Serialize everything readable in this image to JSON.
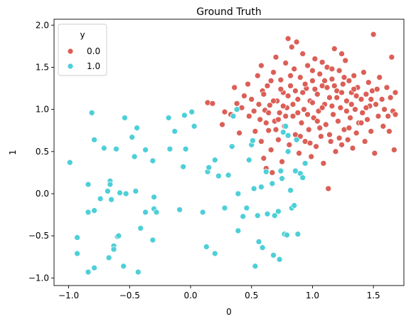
{
  "chart_data": {
    "type": "scatter",
    "title": "Ground Truth",
    "xlabel": "0",
    "ylabel": "1",
    "xlim": [
      -1.12,
      1.75
    ],
    "ylim": [
      -1.09,
      2.07
    ],
    "xticks": [
      -1.0,
      -0.5,
      0.0,
      0.5,
      1.0,
      1.5
    ],
    "xtick_labels": [
      "−1.0",
      "−0.5",
      "0.0",
      "0.5",
      "1.0",
      "1.5"
    ],
    "yticks": [
      -1.0,
      -0.5,
      0.0,
      0.5,
      1.0,
      1.5,
      2.0
    ],
    "ytick_labels": [
      "−1.0",
      "−0.5",
      "0.0",
      "0.5",
      "1.0",
      "1.5",
      "2.0"
    ],
    "grid": false,
    "legend": {
      "title": "y",
      "placement": "top-left"
    },
    "series": [
      {
        "name": "0.0",
        "color": "#db5f57",
        "points": [
          [
            0.14,
            1.08
          ],
          [
            0.18,
            1.07
          ],
          [
            0.26,
            0.82
          ],
          [
            0.28,
            0.97
          ],
          [
            0.33,
            0.94
          ],
          [
            0.36,
            1.26
          ],
          [
            0.38,
            1.07
          ],
          [
            0.4,
            0.72
          ],
          [
            0.42,
            1.02
          ],
          [
            0.44,
            1.16
          ],
          [
            0.47,
            1.3
          ],
          [
            0.48,
            0.92
          ],
          [
            0.5,
            1.12
          ],
          [
            0.52,
            0.98
          ],
          [
            0.53,
            0.74
          ],
          [
            0.55,
            1.4
          ],
          [
            0.57,
            0.88
          ],
          [
            0.58,
            1.52
          ],
          [
            0.59,
            1.22
          ],
          [
            0.6,
            0.42
          ],
          [
            0.61,
            0.99
          ],
          [
            0.62,
            0.3
          ],
          [
            0.63,
            1.28
          ],
          [
            0.64,
            0.75
          ],
          [
            0.65,
            1.05
          ],
          [
            0.66,
            0.52
          ],
          [
            0.67,
            0.25
          ],
          [
            0.68,
            1.44
          ],
          [
            0.69,
            0.86
          ],
          [
            0.7,
            1.62
          ],
          [
            0.71,
            1.1
          ],
          [
            0.72,
            0.64
          ],
          [
            0.73,
            0.96
          ],
          [
            0.74,
            1.35
          ],
          [
            0.75,
            0.38
          ],
          [
            0.76,
            1.2
          ],
          [
            0.77,
            0.8
          ],
          [
            0.78,
            1.55
          ],
          [
            0.79,
            1.02
          ],
          [
            0.8,
            1.84
          ],
          [
            0.81,
            0.58
          ],
          [
            0.82,
            1.28
          ],
          [
            0.83,
            1.74
          ],
          [
            0.84,
            0.92
          ],
          [
            0.85,
            1.48
          ],
          [
            0.86,
            0.7
          ],
          [
            0.87,
            1.8
          ],
          [
            0.88,
            1.12
          ],
          [
            0.89,
            0.48
          ],
          [
            0.9,
            1.38
          ],
          [
            0.91,
            0.84
          ],
          [
            0.92,
            1.66
          ],
          [
            0.93,
            1.0
          ],
          [
            0.94,
            0.62
          ],
          [
            0.95,
            1.25
          ],
          [
            0.96,
            1.52
          ],
          [
            0.97,
            0.76
          ],
          [
            0.98,
            1.1
          ],
          [
            0.99,
            0.44
          ],
          [
            1.0,
            1.34
          ],
          [
            1.01,
            0.9
          ],
          [
            1.02,
            1.6
          ],
          [
            1.03,
            0.56
          ],
          [
            1.04,
            1.18
          ],
          [
            1.05,
            0.98
          ],
          [
            1.06,
            1.42
          ],
          [
            1.07,
            0.68
          ],
          [
            1.08,
            1.28
          ],
          [
            1.09,
            0.36
          ],
          [
            1.1,
            1.06
          ],
          [
            1.11,
            0.82
          ],
          [
            1.12,
            1.5
          ],
          [
            1.13,
            0.06
          ],
          [
            1.14,
            1.14
          ],
          [
            1.15,
            0.62
          ],
          [
            1.16,
            1.36
          ],
          [
            1.17,
            0.94
          ],
          [
            1.18,
            1.72
          ],
          [
            1.19,
            0.5
          ],
          [
            1.2,
            1.22
          ],
          [
            1.21,
            0.86
          ],
          [
            1.22,
            1.46
          ],
          [
            1.23,
            1.02
          ],
          [
            1.24,
            0.58
          ],
          [
            1.25,
            1.3
          ],
          [
            1.26,
            0.76
          ],
          [
            1.27,
            1.58
          ],
          [
            1.28,
            1.1
          ],
          [
            1.29,
            0.64
          ],
          [
            1.3,
            1.34
          ],
          [
            1.31,
            0.9
          ],
          [
            1.32,
            1.2
          ],
          [
            1.33,
            0.54
          ],
          [
            1.34,
            1.4
          ],
          [
            1.35,
            1.0
          ],
          [
            1.36,
            0.72
          ],
          [
            1.37,
            1.26
          ],
          [
            1.38,
            0.84
          ],
          [
            1.4,
            1.12
          ],
          [
            1.41,
            0.96
          ],
          [
            1.42,
            1.44
          ],
          [
            1.43,
            0.62
          ],
          [
            1.44,
            1.18
          ],
          [
            1.45,
            0.88
          ],
          [
            1.46,
            1.32
          ],
          [
            1.47,
            1.04
          ],
          [
            1.48,
            0.74
          ],
          [
            1.49,
            1.22
          ],
          [
            1.5,
            1.89
          ],
          [
            1.51,
            0.48
          ],
          [
            1.52,
            1.06
          ],
          [
            1.53,
            1.24
          ],
          [
            1.54,
            0.92
          ],
          [
            1.55,
            1.38
          ],
          [
            1.57,
            1.12
          ],
          [
            1.58,
            0.8
          ],
          [
            1.59,
            1.0
          ],
          [
            1.61,
            1.26
          ],
          [
            1.62,
            0.92
          ],
          [
            1.63,
            0.74
          ],
          [
            1.64,
            1.14
          ],
          [
            1.65,
            1.62
          ],
          [
            1.66,
            0.98
          ],
          [
            1.67,
            0.52
          ],
          [
            1.68,
            1.2
          ],
          [
            1.68,
            0.94
          ],
          [
            0.56,
            1.06
          ],
          [
            0.6,
            1.18
          ],
          [
            0.64,
            0.96
          ],
          [
            0.68,
            1.1
          ],
          [
            0.72,
            0.88
          ],
          [
            0.76,
            1.04
          ],
          [
            0.8,
            1.16
          ],
          [
            0.84,
            1.06
          ],
          [
            0.88,
            0.96
          ],
          [
            0.92,
            1.2
          ],
          [
            0.96,
            0.94
          ],
          [
            1.0,
            1.08
          ],
          [
            1.04,
            0.86
          ],
          [
            1.08,
            1.02
          ],
          [
            1.12,
            1.26
          ],
          [
            1.16,
            1.04
          ],
          [
            1.2,
            1.14
          ],
          [
            1.24,
            1.2
          ],
          [
            1.28,
            0.98
          ],
          [
            1.32,
            1.06
          ],
          [
            1.36,
            1.16
          ],
          [
            1.4,
            0.84
          ],
          [
            1.44,
            1.02
          ],
          [
            1.48,
            1.12
          ],
          [
            0.62,
            0.84
          ],
          [
            0.7,
            0.76
          ],
          [
            0.78,
            0.92
          ],
          [
            0.86,
            1.22
          ],
          [
            0.94,
            1.3
          ],
          [
            1.02,
            1.24
          ],
          [
            1.1,
            1.34
          ],
          [
            1.18,
            1.28
          ],
          [
            1.26,
            1.38
          ],
          [
            1.34,
            1.24
          ],
          [
            0.9,
            0.68
          ],
          [
            0.98,
            0.6
          ],
          [
            1.06,
            0.78
          ],
          [
            1.14,
            0.7
          ],
          [
            1.22,
            0.66
          ],
          [
            1.3,
            0.78
          ],
          [
            0.74,
            1.24
          ],
          [
            0.82,
            1.4
          ],
          [
            1.0,
            1.46
          ],
          [
            1.08,
            1.56
          ],
          [
            1.16,
            1.48
          ],
          [
            1.24,
            1.66
          ],
          [
            0.66,
            1.34
          ],
          [
            0.58,
            0.62
          ]
        ]
      },
      {
        "name": "1.0",
        "color": "#4ecfd8",
        "points": [
          [
            -0.99,
            0.37
          ],
          [
            -0.93,
            -0.52
          ],
          [
            -0.93,
            -0.71
          ],
          [
            -0.84,
            -0.22
          ],
          [
            -0.84,
            0.11
          ],
          [
            -0.84,
            -0.93
          ],
          [
            -0.81,
            0.96
          ],
          [
            -0.79,
            0.64
          ],
          [
            -0.79,
            -0.2
          ],
          [
            -0.79,
            -0.88
          ],
          [
            -0.74,
            -0.06
          ],
          [
            -0.71,
            0.54
          ],
          [
            -0.68,
            0.03
          ],
          [
            -0.67,
            -0.76
          ],
          [
            -0.66,
            0.15
          ],
          [
            -0.66,
            0.11
          ],
          [
            -0.65,
            -0.07
          ],
          [
            -0.63,
            -0.62
          ],
          [
            -0.63,
            -0.66
          ],
          [
            -0.61,
            0.53
          ],
          [
            -0.6,
            -0.51
          ],
          [
            -0.59,
            -0.5
          ],
          [
            -0.58,
            0.01
          ],
          [
            -0.55,
            -0.86
          ],
          [
            -0.54,
            0.9
          ],
          [
            -0.53,
            0.0
          ],
          [
            -0.48,
            0.67
          ],
          [
            -0.46,
            0.44
          ],
          [
            -0.45,
            0.03
          ],
          [
            -0.44,
            0.78
          ],
          [
            -0.43,
            -0.93
          ],
          [
            -0.41,
            -0.41
          ],
          [
            -0.37,
            0.52
          ],
          [
            -0.37,
            -0.22
          ],
          [
            -0.31,
            0.39
          ],
          [
            -0.31,
            -0.55
          ],
          [
            -0.3,
            -0.04
          ],
          [
            -0.3,
            -0.18
          ],
          [
            -0.28,
            -0.22
          ],
          [
            -0.18,
            0.9
          ],
          [
            -0.17,
            0.53
          ],
          [
            -0.13,
            0.74
          ],
          [
            -0.09,
            -0.19
          ],
          [
            -0.06,
            0.32
          ],
          [
            -0.05,
            0.93
          ],
          [
            -0.04,
            0.53
          ],
          [
            0.01,
            0.97
          ],
          [
            0.03,
            0.8
          ],
          [
            0.1,
            -0.22
          ],
          [
            0.13,
            -0.63
          ],
          [
            0.14,
            0.26
          ],
          [
            0.15,
            0.31
          ],
          [
            0.2,
            -0.71
          ],
          [
            0.2,
            0.4
          ],
          [
            0.23,
            0.21
          ],
          [
            0.28,
            -0.17
          ],
          [
            0.31,
            0.22
          ],
          [
            0.34,
            0.56
          ],
          [
            0.35,
            0.92
          ],
          [
            0.38,
            1.0
          ],
          [
            0.39,
            -0.44
          ],
          [
            0.39,
            0.0
          ],
          [
            0.43,
            -0.27
          ],
          [
            0.46,
            -0.17
          ],
          [
            0.48,
            0.4
          ],
          [
            0.5,
            0.58
          ],
          [
            0.51,
            0.63
          ],
          [
            0.52,
            0.06
          ],
          [
            0.53,
            -0.86
          ],
          [
            0.55,
            -0.26
          ],
          [
            0.56,
            -0.57
          ],
          [
            0.58,
            0.08
          ],
          [
            0.59,
            -0.64
          ],
          [
            0.62,
            0.26
          ],
          [
            0.63,
            -0.24
          ],
          [
            0.67,
            0.12
          ],
          [
            0.68,
            -0.73
          ],
          [
            0.69,
            -0.26
          ],
          [
            0.72,
            -0.21
          ],
          [
            0.73,
            -0.78
          ],
          [
            0.74,
            0.27
          ],
          [
            0.75,
            0.18
          ],
          [
            0.76,
            0.73
          ],
          [
            0.77,
            -0.48
          ],
          [
            0.78,
            0.8
          ],
          [
            0.79,
            -0.49
          ],
          [
            0.8,
            0.69
          ],
          [
            0.8,
            0.5
          ],
          [
            0.82,
            0.04
          ],
          [
            0.83,
            -0.17
          ],
          [
            0.85,
            -0.14
          ],
          [
            0.86,
            0.27
          ],
          [
            0.87,
            0.64
          ],
          [
            0.88,
            -0.48
          ],
          [
            0.9,
            0.24
          ],
          [
            0.92,
            0.19
          ],
          [
            0.94,
            0.36
          ]
        ]
      }
    ]
  }
}
